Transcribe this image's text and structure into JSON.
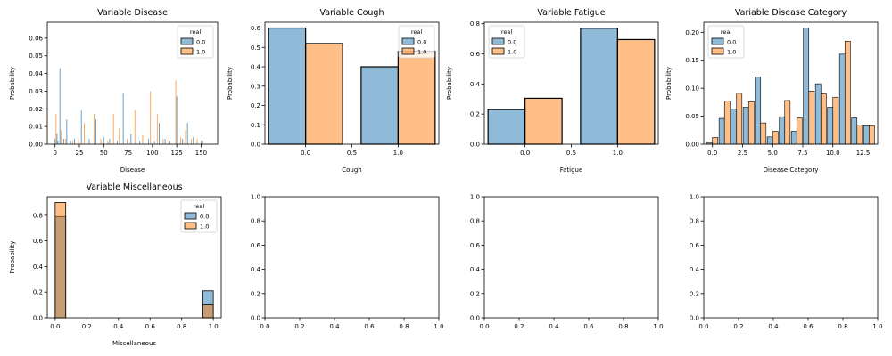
{
  "legend_title": "real",
  "colors": {
    "0.0": "#1f77b4",
    "1.0": "#ff7f0e"
  },
  "chart_data": [
    {
      "id": "disease",
      "type": "histogram",
      "title": "Variable Disease",
      "xlabel": "Disease",
      "ylabel": "Probability",
      "xlim": [
        -8,
        167
      ],
      "ylim": [
        0,
        0.069
      ],
      "xticks": [
        0,
        25,
        50,
        75,
        100,
        125,
        150
      ],
      "xtick_labels": [
        "0",
        "25",
        "50",
        "75",
        "100",
        "125",
        "150"
      ],
      "yticks": [
        0,
        0.01,
        0.02,
        0.03,
        0.04,
        0.05,
        0.06
      ],
      "ytick_labels": [
        "0.00",
        "0.01",
        "0.02",
        "0.03",
        "0.04",
        "0.05",
        "0.06"
      ],
      "legend": {
        "placement": "top-right",
        "entries": [
          "0.0",
          "1.0"
        ]
      },
      "series": [
        {
          "name": "0.0",
          "x": [
            0,
            2,
            3,
            5,
            9,
            12,
            16,
            20,
            27,
            35,
            42,
            50,
            56,
            64,
            70,
            78,
            87,
            96,
            102,
            107,
            113,
            118,
            125,
            131,
            136,
            142,
            150
          ],
          "values": [
            0.003,
            0.006,
            0.002,
            0.043,
            0.003,
            0.014,
            0.002,
            0.003,
            0.019,
            0.003,
            0.014,
            0.004,
            0.003,
            0.002,
            0.029,
            0.006,
            0.002,
            0.003,
            0.002,
            0.012,
            0.003,
            0.002,
            0.027,
            0.003,
            0.012,
            0.004,
            0.002
          ]
        },
        {
          "name": "1.0",
          "x": [
            1,
            6,
            11,
            18,
            24,
            30,
            40,
            47,
            54,
            60,
            66,
            74,
            82,
            90,
            98,
            105,
            111,
            117,
            124,
            129,
            134,
            140,
            146,
            152
          ],
          "values": [
            0.017,
            0.008,
            0.003,
            0.002,
            0.003,
            0.012,
            0.017,
            0.003,
            0.002,
            0.017,
            0.009,
            0.003,
            0.019,
            0.005,
            0.03,
            0.017,
            0.003,
            0.003,
            0.036,
            0.004,
            0.008,
            0.003,
            0.003,
            0.002
          ]
        }
      ]
    },
    {
      "id": "cough",
      "type": "bar",
      "title": "Variable Cough",
      "xlabel": "Cough",
      "ylabel": "Probability",
      "xlim": [
        -0.44,
        1.44
      ],
      "ylim": [
        0,
        0.63
      ],
      "xticks": [
        0,
        0.5,
        1
      ],
      "xtick_labels": [
        "0.0",
        "0.5",
        "1.0"
      ],
      "yticks": [
        0,
        0.1,
        0.2,
        0.3,
        0.4,
        0.5,
        0.6
      ],
      "ytick_labels": [
        "0.0",
        "0.1",
        "0.2",
        "0.3",
        "0.4",
        "0.5",
        "0.6"
      ],
      "legend": {
        "placement": "top-right",
        "entries": [
          "0.0",
          "1.0"
        ]
      },
      "categories": [
        0,
        1
      ],
      "series": [
        {
          "name": "0.0",
          "values": [
            0.6,
            0.4
          ]
        },
        {
          "name": "1.0",
          "values": [
            0.52,
            0.48
          ]
        }
      ]
    },
    {
      "id": "fatigue",
      "type": "bar",
      "title": "Variable Fatigue",
      "xlabel": "Fatigue",
      "ylabel": "Probability",
      "xlim": [
        -0.44,
        1.44
      ],
      "ylim": [
        0,
        0.81
      ],
      "xticks": [
        0,
        0.5,
        1
      ],
      "xtick_labels": [
        "0.0",
        "0.5",
        "1.0"
      ],
      "yticks": [
        0,
        0.2,
        0.4,
        0.6,
        0.8
      ],
      "ytick_labels": [
        "0.0",
        "0.2",
        "0.4",
        "0.6",
        "0.8"
      ],
      "legend": {
        "placement": "top-left",
        "entries": [
          "0.0",
          "1.0"
        ]
      },
      "categories": [
        0,
        1
      ],
      "series": [
        {
          "name": "0.0",
          "values": [
            0.23,
            0.77
          ]
        },
        {
          "name": "1.0",
          "values": [
            0.305,
            0.695
          ]
        }
      ]
    },
    {
      "id": "disease_category",
      "type": "histogram",
      "title": "Variable Disease Category",
      "xlabel": "Disease Category",
      "ylabel": "Probability",
      "xlim": [
        -0.72,
        13.72
      ],
      "ylim": [
        0,
        0.218
      ],
      "xticks": [
        0,
        2.5,
        5,
        7.5,
        10,
        12.5
      ],
      "xtick_labels": [
        "0.0",
        "2.5",
        "5.0",
        "7.5",
        "10.0",
        "12.5"
      ],
      "yticks": [
        0,
        0.05,
        0.1,
        0.15,
        0.2
      ],
      "ytick_labels": [
        "0.00",
        "0.05",
        "0.10",
        "0.15",
        "0.20"
      ],
      "legend": {
        "placement": "top-left",
        "entries": [
          "0.0",
          "1.0"
        ]
      },
      "categories": [
        0,
        1,
        2,
        3,
        4,
        5,
        6,
        7,
        8,
        9,
        10,
        11,
        12,
        13
      ],
      "series": [
        {
          "name": "0.0",
          "values": [
            0.003,
            0.046,
            0.063,
            0.066,
            0.12,
            0.013,
            0.049,
            0.023,
            0.208,
            0.108,
            0.066,
            0.161,
            0.047,
            0.033
          ]
        },
        {
          "name": "1.0",
          "values": [
            0.012,
            0.077,
            0.091,
            0.076,
            0.038,
            0.023,
            0.078,
            0.047,
            0.095,
            0.09,
            0.084,
            0.184,
            0.034,
            0.033
          ]
        }
      ]
    },
    {
      "id": "miscellaneous",
      "type": "histogram",
      "title": "Variable Miscellaneous",
      "xlabel": "Miscellaneous",
      "ylabel": "Probability",
      "xlim": [
        -0.05,
        1.05
      ],
      "ylim": [
        0,
        0.945
      ],
      "xticks": [
        0,
        0.2,
        0.4,
        0.6,
        0.8,
        1
      ],
      "xtick_labels": [
        "0.0",
        "0.2",
        "0.4",
        "0.6",
        "0.8",
        "1.0"
      ],
      "yticks": [
        0,
        0.2,
        0.4,
        0.6,
        0.8
      ],
      "ytick_labels": [
        "0.0",
        "0.2",
        "0.4",
        "0.6",
        "0.8"
      ],
      "legend": {
        "placement": "top-right",
        "entries": [
          "0.0",
          "1.0"
        ]
      },
      "bins": [
        [
          0,
          0.0667
        ],
        [
          0.9333,
          1.0
        ]
      ],
      "series": [
        {
          "name": "0.0",
          "values": [
            0.79,
            0.21
          ]
        },
        {
          "name": "1.0",
          "values": [
            0.9,
            0.1
          ]
        }
      ]
    },
    {
      "id": "empty_1",
      "type": "empty",
      "xlim": [
        0,
        1
      ],
      "ylim": [
        0,
        1
      ],
      "xticks": [
        0,
        0.2,
        0.4,
        0.6,
        0.8,
        1
      ],
      "xtick_labels": [
        "0.0",
        "0.2",
        "0.4",
        "0.6",
        "0.8",
        "1.0"
      ],
      "yticks": [
        0,
        0.2,
        0.4,
        0.6,
        0.8,
        1
      ],
      "ytick_labels": [
        "0.0",
        "0.2",
        "0.4",
        "0.6",
        "0.8",
        "1.0"
      ]
    },
    {
      "id": "empty_2",
      "type": "empty",
      "xlim": [
        0,
        1
      ],
      "ylim": [
        0,
        1
      ],
      "xticks": [
        0,
        0.2,
        0.4,
        0.6,
        0.8,
        1
      ],
      "xtick_labels": [
        "0.0",
        "0.2",
        "0.4",
        "0.6",
        "0.8",
        "1.0"
      ],
      "yticks": [
        0,
        0.2,
        0.4,
        0.6,
        0.8,
        1
      ],
      "ytick_labels": [
        "0.0",
        "0.2",
        "0.4",
        "0.6",
        "0.8",
        "1.0"
      ]
    },
    {
      "id": "empty_3",
      "type": "empty",
      "xlim": [
        0,
        1
      ],
      "ylim": [
        0,
        1
      ],
      "xticks": [
        0,
        0.2,
        0.4,
        0.6,
        0.8,
        1
      ],
      "xtick_labels": [
        "0.0",
        "0.2",
        "0.4",
        "0.6",
        "0.8",
        "1.0"
      ],
      "yticks": [
        0,
        0.2,
        0.4,
        0.6,
        0.8,
        1
      ],
      "ytick_labels": [
        "0.0",
        "0.2",
        "0.4",
        "0.6",
        "0.8",
        "1.0"
      ]
    }
  ]
}
